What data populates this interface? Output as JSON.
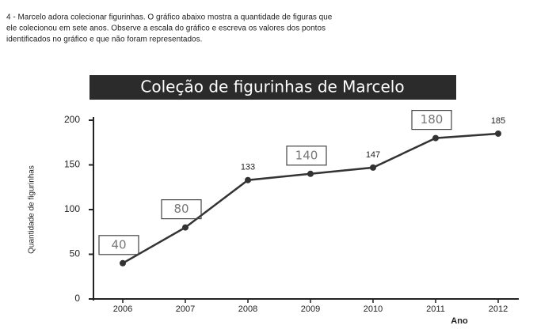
{
  "question_lines": [
    "4 - Marcelo adora colecionar figurinhas. O gráfico abaixo mostra a quantidade de figuras que",
    "ele colecionou em sete anos.  Observe a escala do gráfico e escreva os valores dos pontos",
    "identificados no gráfico e que não foram representados."
  ],
  "chart_data": {
    "type": "line",
    "title": "Coleção de figurinhas de Marcelo",
    "y_label": "Quantidade de figurinhas",
    "x_label": "Ano",
    "categories": [
      "2006",
      "2007",
      "2008",
      "2009",
      "2010",
      "2011",
      "2012"
    ],
    "values": [
      40,
      80,
      133,
      140,
      147,
      180,
      185
    ],
    "boxed_labels": [
      true,
      true,
      false,
      true,
      false,
      true,
      false
    ],
    "color": "#333333",
    "ylim": [
      0,
      200
    ],
    "yticks": [
      0,
      50,
      100,
      150,
      200
    ],
    "grid": false
  }
}
